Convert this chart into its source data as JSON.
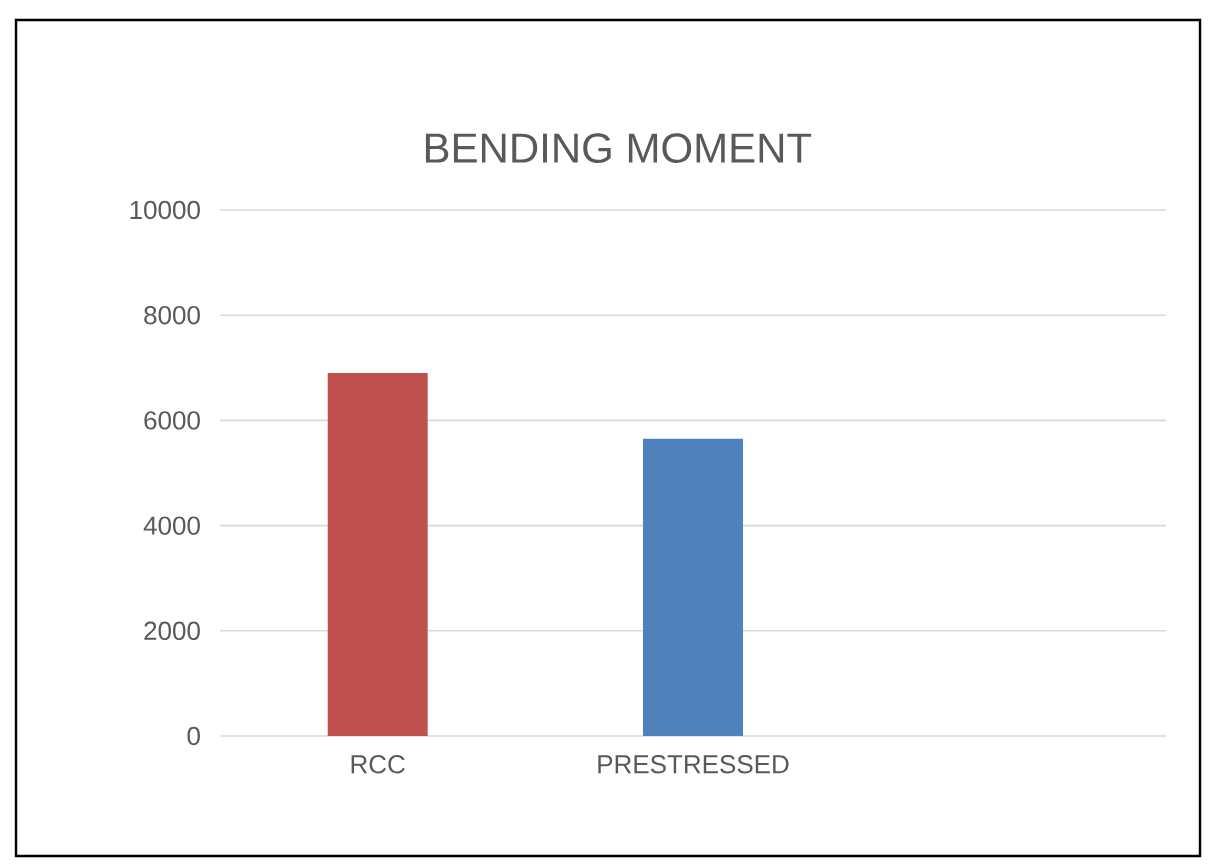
{
  "chart_data": {
    "type": "bar",
    "title": "BENDING MOMENT",
    "categories": [
      "RCC",
      "PRESTRESSED",
      null
    ],
    "values": [
      6900,
      5650,
      null
    ],
    "colors": [
      "#c0504d",
      "#4f81bd",
      null
    ],
    "ylim": [
      0,
      10000
    ],
    "yticks": [
      0,
      2000,
      4000,
      6000,
      8000,
      10000
    ],
    "grid": "y"
  }
}
